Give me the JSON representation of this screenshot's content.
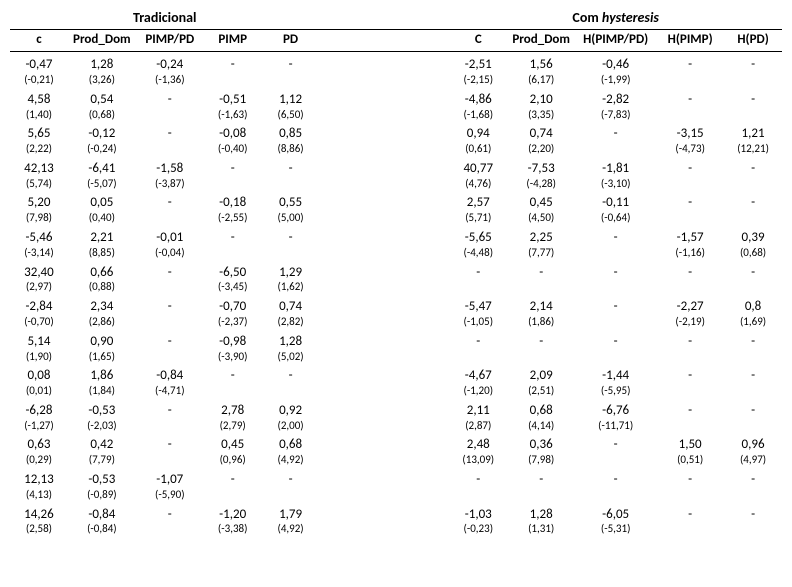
{
  "groupHeaders": {
    "left": "Tradicional",
    "right": "Com hysteresis"
  },
  "columns": {
    "left": [
      "c",
      "Prod_Dom",
      "PIMP/PD",
      "PIMP",
      "PD"
    ],
    "right": [
      "C",
      "Prod_Dom",
      "H(PIMP/PD)",
      "H(PIMP)",
      "H(PD)"
    ]
  },
  "styling": {
    "font_family": "Calibri",
    "body_fontsize": 13,
    "sub_fontsize": 11,
    "header_fontsize": 14,
    "text_color": "#000000",
    "background_color": "#ffffff",
    "border_color": "#000000",
    "right_header_italic_word": "hysteresis"
  },
  "rows": [
    {
      "l": [
        [
          "-0,47",
          "(-0,21)"
        ],
        [
          "1,28",
          "(3,26)"
        ],
        [
          "-0,24",
          "(-1,36)"
        ],
        [
          "-",
          ""
        ],
        [
          "-",
          ""
        ]
      ],
      "r": [
        [
          "-2,51",
          "(-2,15)"
        ],
        [
          "1,56",
          "(6,17)"
        ],
        [
          "-0,46",
          "(-1,99)"
        ],
        [
          "-",
          ""
        ],
        [
          "-",
          ""
        ]
      ]
    },
    {
      "l": [
        [
          "4,58",
          "(1,40)"
        ],
        [
          "0,54",
          "(0,68)"
        ],
        [
          "-",
          ""
        ],
        [
          "-0,51",
          "(-1,63)"
        ],
        [
          "1,12",
          "(6,50)"
        ]
      ],
      "r": [
        [
          "-4,86",
          "(-1,68)"
        ],
        [
          "2,10",
          "(3,35)"
        ],
        [
          "-2,82",
          "(-7,83)"
        ],
        [
          "-",
          ""
        ],
        [
          "-",
          ""
        ]
      ]
    },
    {
      "l": [
        [
          "5,65",
          "(2,22)"
        ],
        [
          "-0,12",
          "(-0,24)"
        ],
        [
          "-",
          ""
        ],
        [
          "-0,08",
          "(-0,40)"
        ],
        [
          "0,85",
          "(8,86)"
        ]
      ],
      "r": [
        [
          "0,94",
          "(0,61)"
        ],
        [
          "0,74",
          "(2,20)"
        ],
        [
          "-",
          ""
        ],
        [
          "-3,15",
          "(-4,73)"
        ],
        [
          "1,21",
          "(12,21)"
        ]
      ]
    },
    {
      "l": [
        [
          "42,13",
          "(5,74)"
        ],
        [
          "-6,41",
          "(-5,07)"
        ],
        [
          "-1,58",
          "(-3,87)"
        ],
        [
          "-",
          ""
        ],
        [
          "-",
          ""
        ]
      ],
      "r": [
        [
          "40,77",
          "(4,76)"
        ],
        [
          "-7,53",
          "(-4,28)"
        ],
        [
          "-1,81",
          "(-3,10)"
        ],
        [
          "-",
          ""
        ],
        [
          "-",
          ""
        ]
      ]
    },
    {
      "l": [
        [
          "5,20",
          "(7,98)"
        ],
        [
          "0,05",
          "(0,40)"
        ],
        [
          "-",
          ""
        ],
        [
          "-0,18",
          "(-2,55)"
        ],
        [
          "0,55",
          "(5,00)"
        ]
      ],
      "r": [
        [
          "2,57",
          "(5,71)"
        ],
        [
          "0,45",
          "(4,50)"
        ],
        [
          "-0,11",
          "(-0,64)"
        ],
        [
          "-",
          ""
        ],
        [
          "-",
          ""
        ]
      ]
    },
    {
      "l": [
        [
          "-5,46",
          "(-3,14)"
        ],
        [
          "2,21",
          "(8,85)"
        ],
        [
          "-0,01",
          "(-0,04)"
        ],
        [
          "-",
          ""
        ],
        [
          "-",
          ""
        ]
      ],
      "r": [
        [
          "-5,65",
          "(-4,48)"
        ],
        [
          "2,25",
          "(7,77)"
        ],
        [
          "-",
          ""
        ],
        [
          "-1,57",
          "(-1,16)"
        ],
        [
          "0,39",
          "(0,68)"
        ]
      ]
    },
    {
      "l": [
        [
          "32,40",
          "(2,97)"
        ],
        [
          "0,66",
          "(0,88)"
        ],
        [
          "-",
          ""
        ],
        [
          "-6,50",
          "(-3,45)"
        ],
        [
          "1,29",
          "(1,62)"
        ]
      ],
      "r": [
        [
          "-",
          ""
        ],
        [
          "-",
          ""
        ],
        [
          "-",
          ""
        ],
        [
          "-",
          ""
        ],
        [
          "-",
          ""
        ]
      ]
    },
    {
      "l": [
        [
          "-2,84",
          "(-0,70)"
        ],
        [
          "2,34",
          "(2,86)"
        ],
        [
          "-",
          ""
        ],
        [
          "-0,70",
          "(-2,37)"
        ],
        [
          "0,74",
          "(2,82)"
        ]
      ],
      "r": [
        [
          "-5,47",
          "(-1,05)"
        ],
        [
          "2,14",
          "(1,86)"
        ],
        [
          "-",
          ""
        ],
        [
          "-2,27",
          "(-2,19)"
        ],
        [
          "0,8",
          "(1,69)"
        ]
      ]
    },
    {
      "l": [
        [
          "5,14",
          "(1,90)"
        ],
        [
          "0,90",
          "(1,65)"
        ],
        [
          "-",
          ""
        ],
        [
          "-0,98",
          "(-3,90)"
        ],
        [
          "1,28",
          "(5,02)"
        ]
      ],
      "r": [
        [
          "-",
          ""
        ],
        [
          "-",
          ""
        ],
        [
          "-",
          ""
        ],
        [
          "-",
          ""
        ],
        [
          "-",
          ""
        ]
      ]
    },
    {
      "l": [
        [
          "0,08",
          "(0,01)"
        ],
        [
          "1,86",
          "(1,84)"
        ],
        [
          "-0,84",
          "(-4,71)"
        ],
        [
          "-",
          ""
        ],
        [
          "-",
          ""
        ]
      ],
      "r": [
        [
          "-4,67",
          "(-1,20)"
        ],
        [
          "2,09",
          "(2,51)"
        ],
        [
          "-1,44",
          "(-5,95)"
        ],
        [
          "-",
          ""
        ],
        [
          "-",
          ""
        ]
      ]
    },
    {
      "l": [
        [
          "-6,28",
          "(-1,27)"
        ],
        [
          "-0,53",
          "(-2,03)"
        ],
        [
          "-",
          ""
        ],
        [
          "2,78",
          "(2,79)"
        ],
        [
          "0,92",
          "(2,00)"
        ]
      ],
      "r": [
        [
          "2,11",
          "(2,87)"
        ],
        [
          "0,68",
          "(4,14)"
        ],
        [
          "-6,76",
          "(-11,71)"
        ],
        [
          "-",
          ""
        ],
        [
          "-",
          ""
        ]
      ]
    },
    {
      "l": [
        [
          "0,63",
          "(0,29)"
        ],
        [
          "0,42",
          "(7,79)"
        ],
        [
          "-",
          ""
        ],
        [
          "0,45",
          "(0,96)"
        ],
        [
          "0,68",
          "(4,92)"
        ]
      ],
      "r": [
        [
          "2,48",
          "(13,09)"
        ],
        [
          "0,36",
          "(7,98)"
        ],
        [
          "-",
          ""
        ],
        [
          "1,50",
          "(0,51)"
        ],
        [
          "0,96",
          "(4,97)"
        ]
      ]
    },
    {
      "l": [
        [
          "12,13",
          "(4,13)"
        ],
        [
          "-0,53",
          "(-0,89)"
        ],
        [
          "-1,07",
          "(-5,90)"
        ],
        [
          "-",
          ""
        ],
        [
          "-",
          ""
        ]
      ],
      "r": [
        [
          "-",
          ""
        ],
        [
          "-",
          ""
        ],
        [
          "-",
          ""
        ],
        [
          "-",
          ""
        ],
        [
          "-",
          ""
        ]
      ]
    },
    {
      "l": [
        [
          "14,26",
          "(2,58)"
        ],
        [
          "-0,84",
          "(-0,84)"
        ],
        [
          "-",
          ""
        ],
        [
          "-1,20",
          "(-3,38)"
        ],
        [
          "1,79",
          "(4,92)"
        ]
      ],
      "r": [
        [
          "-1,03",
          "(-0,23)"
        ],
        [
          "1,28",
          "(1,31)"
        ],
        [
          "-6,05",
          "(-5,31)"
        ],
        [
          "-",
          ""
        ],
        [
          "-",
          ""
        ]
      ]
    }
  ]
}
